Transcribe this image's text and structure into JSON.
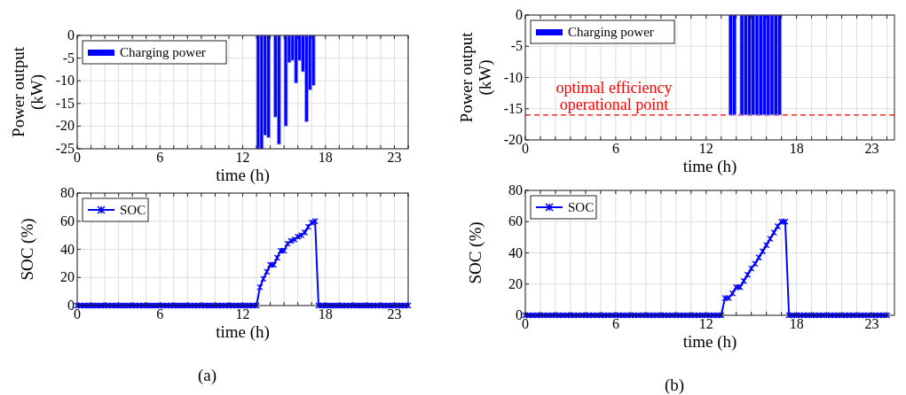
{
  "chart_data": [
    {
      "type": "bar",
      "xlabel": "time (h)",
      "ylabel": "Power output (kW)",
      "xlim": [
        0,
        24
      ],
      "ylim": [
        -25,
        0
      ],
      "yticks": [
        0,
        -5,
        -10,
        -15,
        -20,
        -25
      ],
      "xticks": [
        0,
        {
          "value": 1,
          "label": null
        },
        {
          "value": 2,
          "label": null
        },
        {
          "value": 3,
          "label": null
        },
        {
          "value": 4,
          "label": null
        },
        {
          "value": 5,
          "label": null
        },
        6,
        {
          "value": 7,
          "label": null
        },
        {
          "value": 8,
          "label": null
        },
        {
          "value": 9,
          "label": null
        },
        {
          "value": 10,
          "label": null
        },
        {
          "value": 11,
          "label": null
        },
        12,
        {
          "value": 13,
          "label": null
        },
        {
          "value": 14,
          "label": null
        },
        {
          "value": 15,
          "label": null
        },
        {
          "value": 16,
          "label": null
        },
        {
          "value": 17,
          "label": null
        },
        18,
        {
          "value": 19,
          "label": null
        },
        {
          "value": 20,
          "label": null
        },
        {
          "value": 21,
          "label": null
        },
        {
          "value": 22,
          "label": null
        },
        23,
        {
          "value": 24,
          "label": null
        }
      ],
      "grid": true,
      "legend": "top left",
      "series": [
        {
          "name": "Charging power",
          "color": "#0000ff",
          "x": [
            13.125,
            13.375,
            13.625,
            13.875,
            14.375,
            14.625,
            15.125,
            15.375,
            15.625,
            15.875,
            16.125,
            16.375,
            16.625,
            16.875,
            17.125
          ],
          "values": [
            -25,
            -25,
            -22,
            -22.5,
            -18,
            -24,
            -20,
            -6,
            -5.5,
            -10.5,
            -5.5,
            -8,
            -19,
            -12,
            -11
          ]
        }
      ]
    },
    {
      "type": "line",
      "xlabel": "time (h)",
      "ylabel": "SOC (%)",
      "xlim": [
        0,
        24
      ],
      "ylim": [
        0,
        80
      ],
      "yticks": [
        0,
        20,
        40,
        60,
        80
      ],
      "xticks": [
        0,
        {
          "value": 1,
          "label": null
        },
        {
          "value": 2,
          "label": null
        },
        {
          "value": 3,
          "label": null
        },
        {
          "value": 4,
          "label": null
        },
        {
          "value": 5,
          "label": null
        },
        6,
        {
          "value": 7,
          "label": null
        },
        {
          "value": 8,
          "label": null
        },
        {
          "value": 9,
          "label": null
        },
        {
          "value": 10,
          "label": null
        },
        {
          "value": 11,
          "label": null
        },
        12,
        {
          "value": 13,
          "label": null
        },
        {
          "value": 14,
          "label": null
        },
        {
          "value": 15,
          "label": null
        },
        {
          "value": 16,
          "label": null
        },
        {
          "value": 17,
          "label": null
        },
        18,
        {
          "value": 19,
          "label": null
        },
        {
          "value": 20,
          "label": null
        },
        {
          "value": 21,
          "label": null
        },
        {
          "value": 22,
          "label": null
        },
        23,
        {
          "value": 24,
          "label": null
        }
      ],
      "grid": true,
      "legend": "top left",
      "marker": "cross",
      "line_style": "solid",
      "annotations": [
        "(a)"
      ],
      "series": [
        {
          "name": "SOC",
          "color": "#0000ff",
          "x": [
            0,
            0.25,
            0.5,
            0.75,
            1,
            1.25,
            1.5,
            1.75,
            2,
            2.25,
            2.5,
            2.75,
            3,
            3.25,
            3.5,
            3.75,
            4,
            4.25,
            4.5,
            4.75,
            5,
            5.25,
            5.5,
            5.75,
            6,
            6.25,
            6.5,
            6.75,
            7,
            7.25,
            7.5,
            7.75,
            8,
            8.25,
            8.5,
            8.75,
            9,
            9.25,
            9.5,
            9.75,
            10,
            10.25,
            10.5,
            10.75,
            11,
            11.25,
            11.5,
            11.75,
            12,
            12.25,
            12.5,
            12.75,
            13,
            13.25,
            13.5,
            13.75,
            14,
            14.25,
            14.5,
            14.75,
            15,
            15.25,
            15.5,
            15.75,
            16,
            16.25,
            16.5,
            16.75,
            17,
            17.25,
            17.5,
            17.75,
            18,
            18.25,
            18.5,
            18.75,
            19,
            19.25,
            19.5,
            19.75,
            20,
            20.25,
            20.5,
            20.75,
            21,
            21.25,
            21.5,
            21.75,
            22,
            22.25,
            22.5,
            22.75,
            23,
            23.25,
            23.5,
            23.75,
            24
          ],
          "values": [
            0,
            0,
            0,
            0,
            0,
            0,
            0,
            0,
            0,
            0,
            0,
            0,
            0,
            0,
            0,
            0,
            0,
            0,
            0,
            0,
            0,
            0,
            0,
            0,
            0,
            0,
            0,
            0,
            0,
            0,
            0,
            0,
            0,
            0,
            0,
            0,
            0,
            0,
            0,
            0,
            0,
            0,
            0,
            0,
            0,
            0,
            0,
            0,
            0,
            0,
            0,
            0,
            0,
            13,
            19,
            24,
            29,
            29,
            34,
            39,
            39,
            44,
            46,
            47,
            49,
            50,
            52,
            56,
            59,
            60,
            0,
            0,
            0,
            0,
            0,
            0,
            0,
            0,
            0,
            0,
            0,
            0,
            0,
            0,
            0,
            0,
            0,
            0,
            0,
            0,
            0,
            0,
            0,
            0,
            0,
            0,
            0
          ]
        }
      ]
    },
    {
      "type": "bar",
      "xlabel": "time (h)",
      "ylabel": "Power output (kW)",
      "xlim": [
        0,
        24.5
      ],
      "ylim": [
        -20,
        0
      ],
      "yticks": [
        0,
        -5,
        -10,
        -15,
        -20
      ],
      "xticks": [
        0,
        {
          "value": 1,
          "label": null
        },
        {
          "value": 2,
          "label": null
        },
        {
          "value": 3,
          "label": null
        },
        {
          "value": 4,
          "label": null
        },
        {
          "value": 5,
          "label": null
        },
        6,
        {
          "value": 7,
          "label": null
        },
        {
          "value": 8,
          "label": null
        },
        {
          "value": 9,
          "label": null
        },
        {
          "value": 10,
          "label": null
        },
        {
          "value": 11,
          "label": null
        },
        12,
        {
          "value": 13,
          "label": null
        },
        {
          "value": 14,
          "label": null
        },
        {
          "value": 15,
          "label": null
        },
        {
          "value": 16,
          "label": null
        },
        {
          "value": 17,
          "label": null
        },
        18,
        {
          "value": 19,
          "label": null
        },
        {
          "value": 20,
          "label": null
        },
        {
          "value": 21,
          "label": null
        },
        {
          "value": 22,
          "label": null
        },
        23,
        {
          "value": 24,
          "label": null
        }
      ],
      "grid": true,
      "legend": "top left",
      "ref_lines": [
        {
          "axis": "y",
          "value": -16,
          "label": "optimal efficiency operational point",
          "color": "#ff0000",
          "line_style": "dashed"
        }
      ],
      "series": [
        {
          "name": "Charging power",
          "color": "#0000ff",
          "x": [
            13.625,
            13.875,
            14.375,
            14.625,
            14.875,
            15.125,
            15.375,
            15.625,
            15.875,
            16.125,
            16.375,
            16.625,
            16.875
          ],
          "values": [
            -16,
            -16,
            -16,
            -16,
            -16,
            -16,
            -16,
            -16,
            -16,
            -16,
            -16,
            -16,
            -16
          ]
        }
      ]
    },
    {
      "type": "line",
      "xlabel": "time (h)",
      "ylabel": "SOC (%)",
      "xlim": [
        0,
        24.5
      ],
      "ylim": [
        0,
        80
      ],
      "yticks": [
        0,
        20,
        40,
        60,
        80
      ],
      "xticks": [
        0,
        {
          "value": 1,
          "label": null
        },
        {
          "value": 2,
          "label": null
        },
        {
          "value": 3,
          "label": null
        },
        {
          "value": 4,
          "label": null
        },
        {
          "value": 5,
          "label": null
        },
        6,
        {
          "value": 7,
          "label": null
        },
        {
          "value": 8,
          "label": null
        },
        {
          "value": 9,
          "label": null
        },
        {
          "value": 10,
          "label": null
        },
        {
          "value": 11,
          "label": null
        },
        12,
        {
          "value": 13,
          "label": null
        },
        {
          "value": 14,
          "label": null
        },
        {
          "value": 15,
          "label": null
        },
        {
          "value": 16,
          "label": null
        },
        {
          "value": 17,
          "label": null
        },
        18,
        {
          "value": 19,
          "label": null
        },
        {
          "value": 20,
          "label": null
        },
        {
          "value": 21,
          "label": null
        },
        {
          "value": 22,
          "label": null
        },
        23,
        {
          "value": 24,
          "label": null
        }
      ],
      "grid": true,
      "legend": "top left",
      "marker": "cross",
      "line_style": "solid",
      "annotations": [
        "(b)"
      ],
      "series": [
        {
          "name": "SOC",
          "color": "#0000ff",
          "x": [
            0,
            0.25,
            0.5,
            0.75,
            1,
            1.25,
            1.5,
            1.75,
            2,
            2.25,
            2.5,
            2.75,
            3,
            3.25,
            3.5,
            3.75,
            4,
            4.25,
            4.5,
            4.75,
            5,
            5.25,
            5.5,
            5.75,
            6,
            6.25,
            6.5,
            6.75,
            7,
            7.25,
            7.5,
            7.75,
            8,
            8.25,
            8.5,
            8.75,
            9,
            9.25,
            9.5,
            9.75,
            10,
            10.25,
            10.5,
            10.75,
            11,
            11.25,
            11.5,
            11.75,
            12,
            12.25,
            12.5,
            12.75,
            13,
            13.25,
            13.5,
            13.75,
            14,
            14.25,
            14.5,
            14.75,
            15,
            15.25,
            15.5,
            15.75,
            16,
            16.25,
            16.5,
            16.75,
            17,
            17.25,
            17.5,
            17.75,
            18,
            18.25,
            18.5,
            18.75,
            19,
            19.25,
            19.5,
            19.75,
            20,
            20.25,
            20.5,
            20.75,
            21,
            21.25,
            21.5,
            21.75,
            22,
            22.25,
            22.5,
            22.75,
            23,
            23.25,
            23.5,
            23.75,
            24
          ],
          "values": [
            0,
            0,
            0,
            0,
            0,
            0,
            0,
            0,
            0,
            0,
            0,
            0,
            0,
            0,
            0,
            0,
            0,
            0,
            0,
            0,
            0,
            0,
            0,
            0,
            0,
            0,
            0,
            0,
            0,
            0,
            0,
            0,
            0,
            0,
            0,
            0,
            0,
            0,
            0,
            0,
            0,
            0,
            0,
            0,
            0,
            0,
            0,
            0,
            0,
            0,
            0,
            0,
            0,
            11,
            11,
            14,
            18,
            18,
            22,
            26,
            30,
            33,
            37,
            41,
            45,
            49,
            53,
            57,
            60,
            60,
            0,
            0,
            0,
            0,
            0,
            0,
            0,
            0,
            0,
            0,
            0,
            0,
            0,
            0,
            0,
            0,
            0,
            0,
            0,
            0,
            0,
            0,
            0,
            0,
            0,
            0,
            0
          ]
        }
      ]
    }
  ]
}
